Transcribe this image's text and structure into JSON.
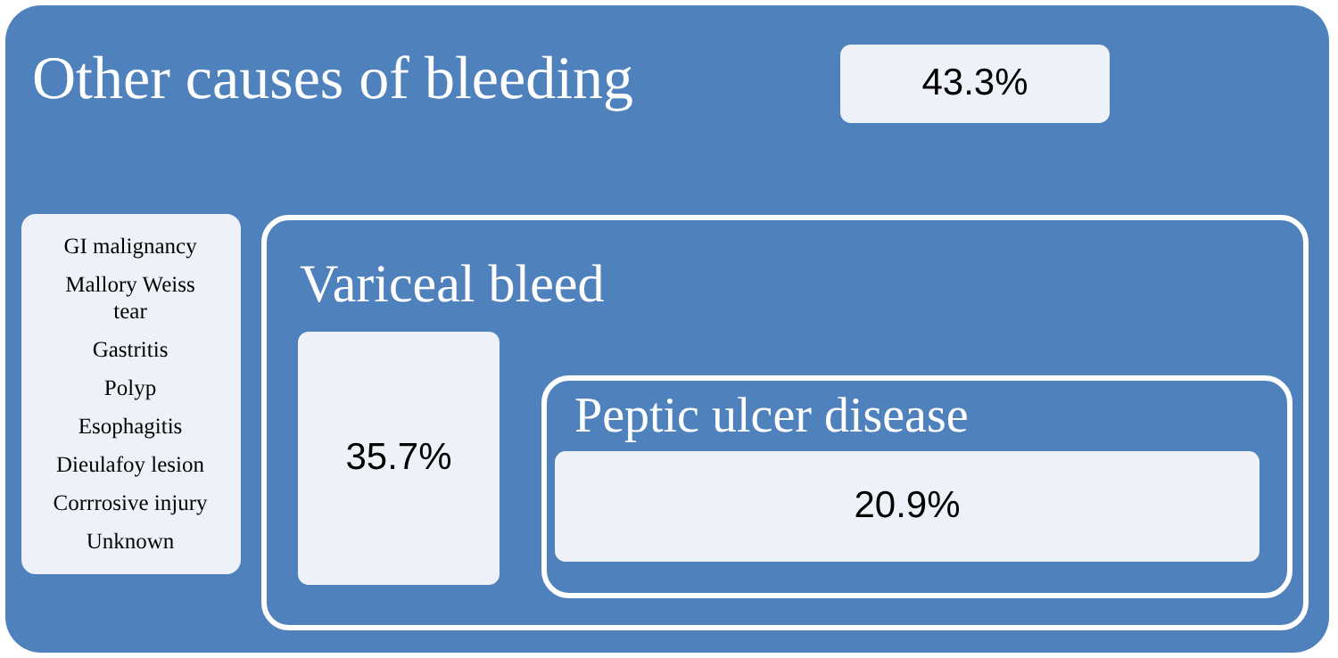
{
  "chart_data": {
    "type": "other",
    "color": "#eef2f8",
    "categories": [
      "Other causes of bleeding",
      "Variceal bleed",
      "Peptic ulcer disease"
    ],
    "values": [
      43.3,
      35.7,
      20.9
    ],
    "value_labels": [
      "43.3%",
      "35.7%",
      "20.9%"
    ],
    "annotations": [
      "GI malignancy",
      "Mallory Weiss tear",
      "Gastritis",
      "Polyp",
      "Esophagitis",
      "Dieulafoy lesion",
      "Corrrosive injury",
      "Unknown"
    ]
  }
}
